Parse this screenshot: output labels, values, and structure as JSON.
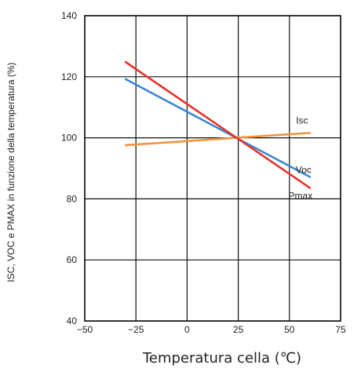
{
  "chart_data": {
    "type": "line",
    "title": "",
    "xlabel": "Temperatura cella (℃)",
    "ylabel": "ISC, VOC e PMAX in funzione della temperatura (%)",
    "xlim": [
      -50,
      75
    ],
    "ylim": [
      40,
      140
    ],
    "xticks": [
      -50,
      -25,
      0,
      25,
      50,
      75
    ],
    "xtick_labels": [
      "−50",
      "−25",
      "0",
      "25",
      "50",
      "75"
    ],
    "yticks": [
      40,
      60,
      80,
      100,
      120,
      140
    ],
    "ytick_labels": [
      "40",
      "60",
      "80",
      "100",
      "120",
      "140"
    ],
    "grid": true,
    "legend": "none",
    "series": [
      {
        "name": "Isc",
        "color": "#f5923e",
        "x": [
          -30,
          60
        ],
        "y": [
          97.6,
          101.6
        ]
      },
      {
        "name": "Voc",
        "color": "#3a87d0",
        "x": [
          -30,
          60
        ],
        "y": [
          119.2,
          87.2
        ]
      },
      {
        "name": "Pmax",
        "color": "#e8322c",
        "x": [
          -30,
          60
        ],
        "y": [
          124.8,
          83.6
        ]
      }
    ]
  }
}
